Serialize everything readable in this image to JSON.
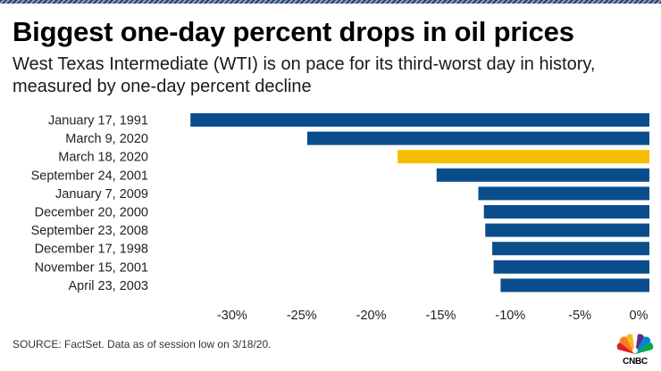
{
  "header": {
    "title": "Biggest one-day percent drops in oil prices",
    "subtitle": "West Texas Intermediate (WTI) is on pace for its third-worst day in history, measured by one-day percent decline"
  },
  "footer": {
    "source": "SOURCE: FactSet. Data as of session low on 3/18/20.",
    "logo_text": "CNBC"
  },
  "colors": {
    "bar": "#0a4d8c",
    "highlight": "#f5bd00",
    "text": "#222222"
  },
  "chart_data": {
    "type": "bar",
    "orientation": "horizontal",
    "title": "Biggest one-day percent drops in oil prices",
    "categories": [
      "January 17, 1991",
      "March 9, 2020",
      "March 18, 2020",
      "September 24, 2001",
      "January 7, 2009",
      "December 20, 2000",
      "September 23, 2008",
      "December 17, 1998",
      "November 15, 2001",
      "April 23, 2003"
    ],
    "values": [
      -33.0,
      -24.6,
      -18.1,
      -15.3,
      -12.3,
      -11.9,
      -11.8,
      -11.3,
      -11.2,
      -10.7
    ],
    "highlight": "March 18, 2020",
    "xlim": [
      -35,
      0
    ],
    "ticks": [
      -30,
      -25,
      -20,
      -15,
      -10,
      -5,
      0
    ],
    "tick_labels": [
      "-30%",
      "-25%",
      "-20%",
      "-15%",
      "-10%",
      "-5%",
      "0%"
    ],
    "xlabel": "",
    "ylabel": "",
    "grid": false,
    "legend": "none"
  }
}
